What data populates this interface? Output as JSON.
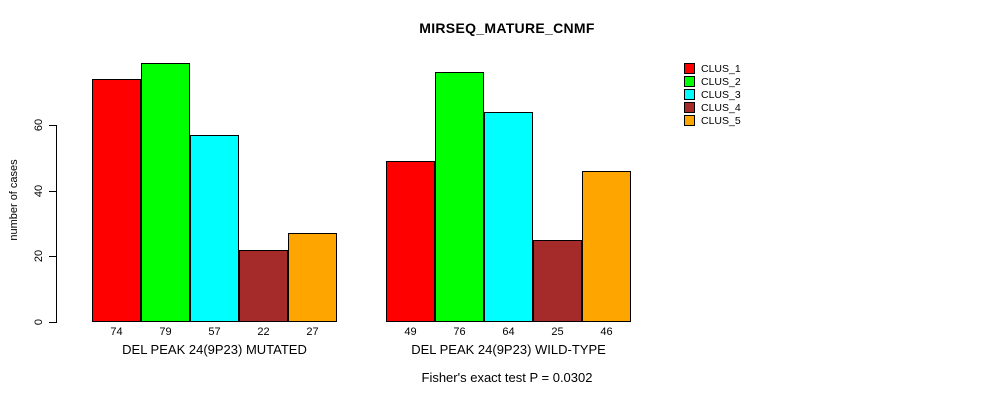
{
  "chart_data": {
    "type": "bar",
    "title": "MIRSEQ_MATURE_CNMF",
    "ylabel": "number of cases",
    "xlabel": "",
    "ylim": [
      0,
      80
    ],
    "yticks": [
      "0",
      "20",
      "40",
      "60"
    ],
    "grid": false,
    "legend_position": "top-right",
    "bar_value_labels_shown": true,
    "categories": [
      "DEL PEAK 24(9P23) MUTATED",
      "DEL PEAK 24(9P23) WILD-TYPE"
    ],
    "series": [
      {
        "name": "CLUS_1",
        "color": "#ff0000",
        "values": [
          74,
          49
        ]
      },
      {
        "name": "CLUS_2",
        "color": "#00ff00",
        "values": [
          79,
          76
        ]
      },
      {
        "name": "CLUS_3",
        "color": "#00ffff",
        "values": [
          57,
          64
        ]
      },
      {
        "name": "CLUS_4",
        "color": "#a52a2a",
        "values": [
          22,
          25
        ]
      },
      {
        "name": "CLUS_5",
        "color": "#ffa500",
        "values": [
          27,
          46
        ]
      }
    ],
    "annotation": "Fisher's exact test P = 0.0302",
    "axis_color": "#000000"
  }
}
